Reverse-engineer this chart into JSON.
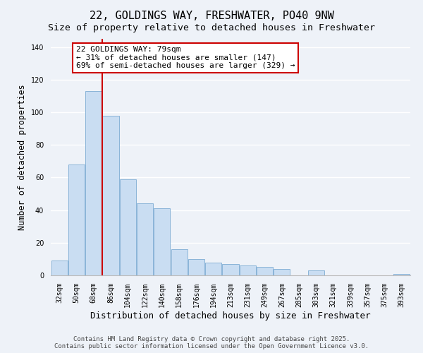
{
  "title": "22, GOLDINGS WAY, FRESHWATER, PO40 9NW",
  "subtitle": "Size of property relative to detached houses in Freshwater",
  "xlabel": "Distribution of detached houses by size in Freshwater",
  "ylabel": "Number of detached properties",
  "bar_labels": [
    "32sqm",
    "50sqm",
    "68sqm",
    "86sqm",
    "104sqm",
    "122sqm",
    "140sqm",
    "158sqm",
    "176sqm",
    "194sqm",
    "213sqm",
    "231sqm",
    "249sqm",
    "267sqm",
    "285sqm",
    "303sqm",
    "321sqm",
    "339sqm",
    "357sqm",
    "375sqm",
    "393sqm"
  ],
  "bar_values": [
    9,
    68,
    113,
    98,
    59,
    44,
    41,
    16,
    10,
    8,
    7,
    6,
    5,
    4,
    0,
    3,
    0,
    0,
    0,
    0,
    1
  ],
  "bar_color": "#c9ddf2",
  "bar_edge_color": "#8ab4d8",
  "vline_x": 2.5,
  "vline_color": "#cc0000",
  "ylim": [
    0,
    145
  ],
  "yticks": [
    0,
    20,
    40,
    60,
    80,
    100,
    120,
    140
  ],
  "annotation_title": "22 GOLDINGS WAY: 79sqm",
  "annotation_line1": "← 31% of detached houses are smaller (147)",
  "annotation_line2": "69% of semi-detached houses are larger (329) →",
  "annotation_box_color": "#ffffff",
  "annotation_box_edge": "#cc0000",
  "footer1": "Contains HM Land Registry data © Crown copyright and database right 2025.",
  "footer2": "Contains public sector information licensed under the Open Government Licence v3.0.",
  "background_color": "#eef2f8",
  "grid_color": "#ffffff",
  "title_fontsize": 11,
  "subtitle_fontsize": 9.5,
  "xlabel_fontsize": 9,
  "ylabel_fontsize": 8.5,
  "tick_fontsize": 7,
  "footer_fontsize": 6.5,
  "annotation_fontsize": 8
}
